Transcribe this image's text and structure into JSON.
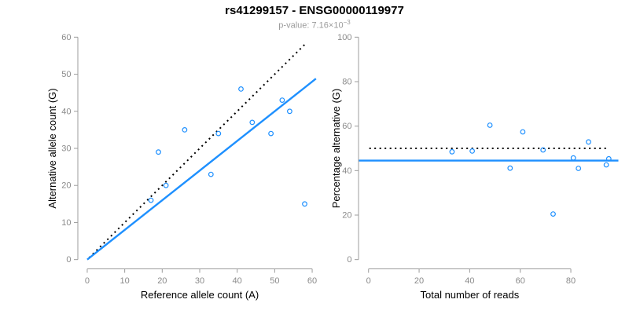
{
  "header": {
    "title": "rs41299157 - ENSG00000119977",
    "subtitle_prefix": "p-value: 7.16×10",
    "subtitle_exponent": "−3"
  },
  "colors": {
    "accent_blue": "#1E90FF",
    "dotted_black": "#000000",
    "axis_line": "#9c9c9c",
    "tick_text": "#8a8a8a",
    "label_text": "#000000",
    "subtitle_text": "#9b9b9b"
  },
  "chart_data": [
    {
      "id": "allele-counts",
      "type": "scatter",
      "xlabel": "Reference allele count (A)",
      "ylabel": "Alternative allele count (G)",
      "xlim": [
        0,
        60
      ],
      "ylim": [
        0,
        60
      ],
      "xticks": [
        0,
        10,
        20,
        30,
        40,
        50,
        60
      ],
      "yticks": [
        0,
        10,
        20,
        30,
        40,
        50,
        60
      ],
      "grid": false,
      "points": [
        [
          17,
          16
        ],
        [
          19,
          29
        ],
        [
          21,
          20
        ],
        [
          26,
          35
        ],
        [
          33,
          23
        ],
        [
          35,
          34
        ],
        [
          41,
          46
        ],
        [
          44,
          37
        ],
        [
          49,
          34
        ],
        [
          52,
          43
        ],
        [
          54,
          40
        ],
        [
          58,
          15
        ]
      ],
      "lines": [
        {
          "name": "identity",
          "style": "dotted",
          "color": "#000000",
          "slope": 1,
          "intercept": 0,
          "x_start": 0.5,
          "x_end": 58.3
        },
        {
          "name": "regression",
          "style": "solid",
          "color": "#1E90FF",
          "slope": 0.8,
          "intercept": 0,
          "x_start": 0,
          "x_end": 61
        }
      ]
    },
    {
      "id": "percentage-alternative",
      "type": "scatter",
      "xlabel": "Total number of reads",
      "ylabel": "Percentage alternative (G)",
      "xlim": [
        0,
        95
      ],
      "ylim": [
        0,
        100
      ],
      "xticks": [
        0,
        20,
        40,
        60,
        80
      ],
      "yticks": [
        0,
        20,
        40,
        60,
        80,
        100
      ],
      "grid": false,
      "points": [
        [
          33,
          48.5
        ],
        [
          48,
          60.4
        ],
        [
          41,
          48.8
        ],
        [
          61,
          57.4
        ],
        [
          56,
          41.1
        ],
        [
          69,
          49.3
        ],
        [
          87,
          52.9
        ],
        [
          81,
          45.7
        ],
        [
          83,
          41.0
        ],
        [
          95,
          45.3
        ],
        [
          94,
          42.6
        ],
        [
          73,
          20.5
        ]
      ],
      "lines": [
        {
          "name": "expected-50pct",
          "style": "dotted",
          "color": "#000000",
          "orientation": "horizontal",
          "y": 50,
          "x_start": 0.3,
          "x_end": 94.5
        },
        {
          "name": "fitted-mean",
          "style": "solid",
          "color": "#1E90FF",
          "orientation": "horizontal",
          "y": 44.5
        }
      ]
    }
  ]
}
